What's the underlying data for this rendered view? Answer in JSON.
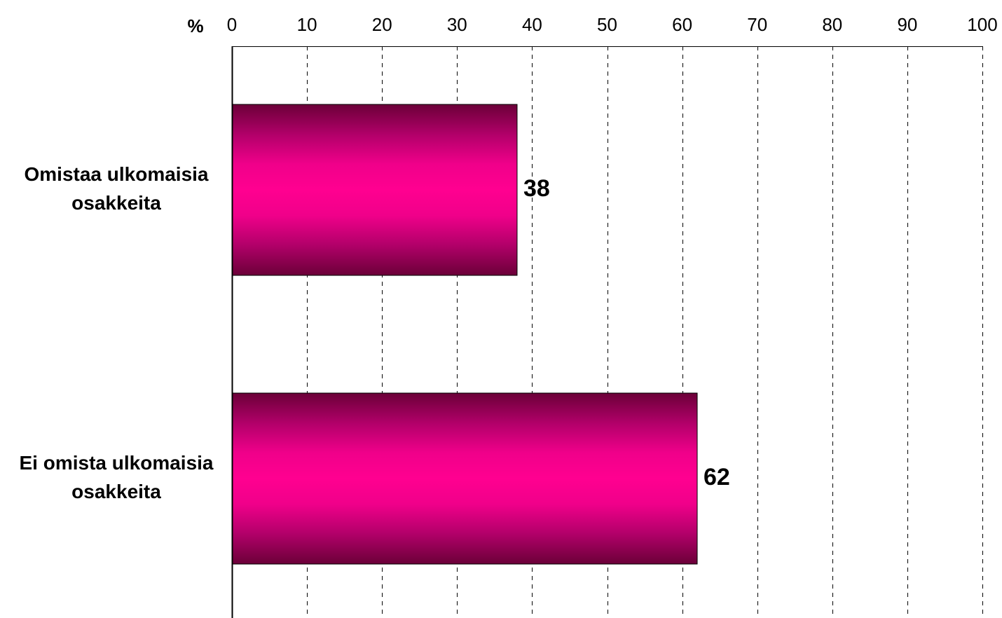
{
  "chart_data": {
    "type": "bar",
    "orientation": "horizontal",
    "unit_label": "%",
    "categories": [
      [
        "Omistaa ulkomaisia",
        "osakkeita"
      ],
      [
        "Ei omista ulkomaisia",
        "osakkeita"
      ]
    ],
    "values": [
      38,
      62
    ],
    "xlim": [
      0,
      100
    ],
    "xticks": [
      0,
      10,
      20,
      30,
      40,
      50,
      60,
      70,
      80,
      90,
      100
    ],
    "grid": "vertical dashed",
    "axis_position": "top",
    "bar_colors": {
      "center": "#ff0090",
      "edge": "#6b0038"
    }
  }
}
